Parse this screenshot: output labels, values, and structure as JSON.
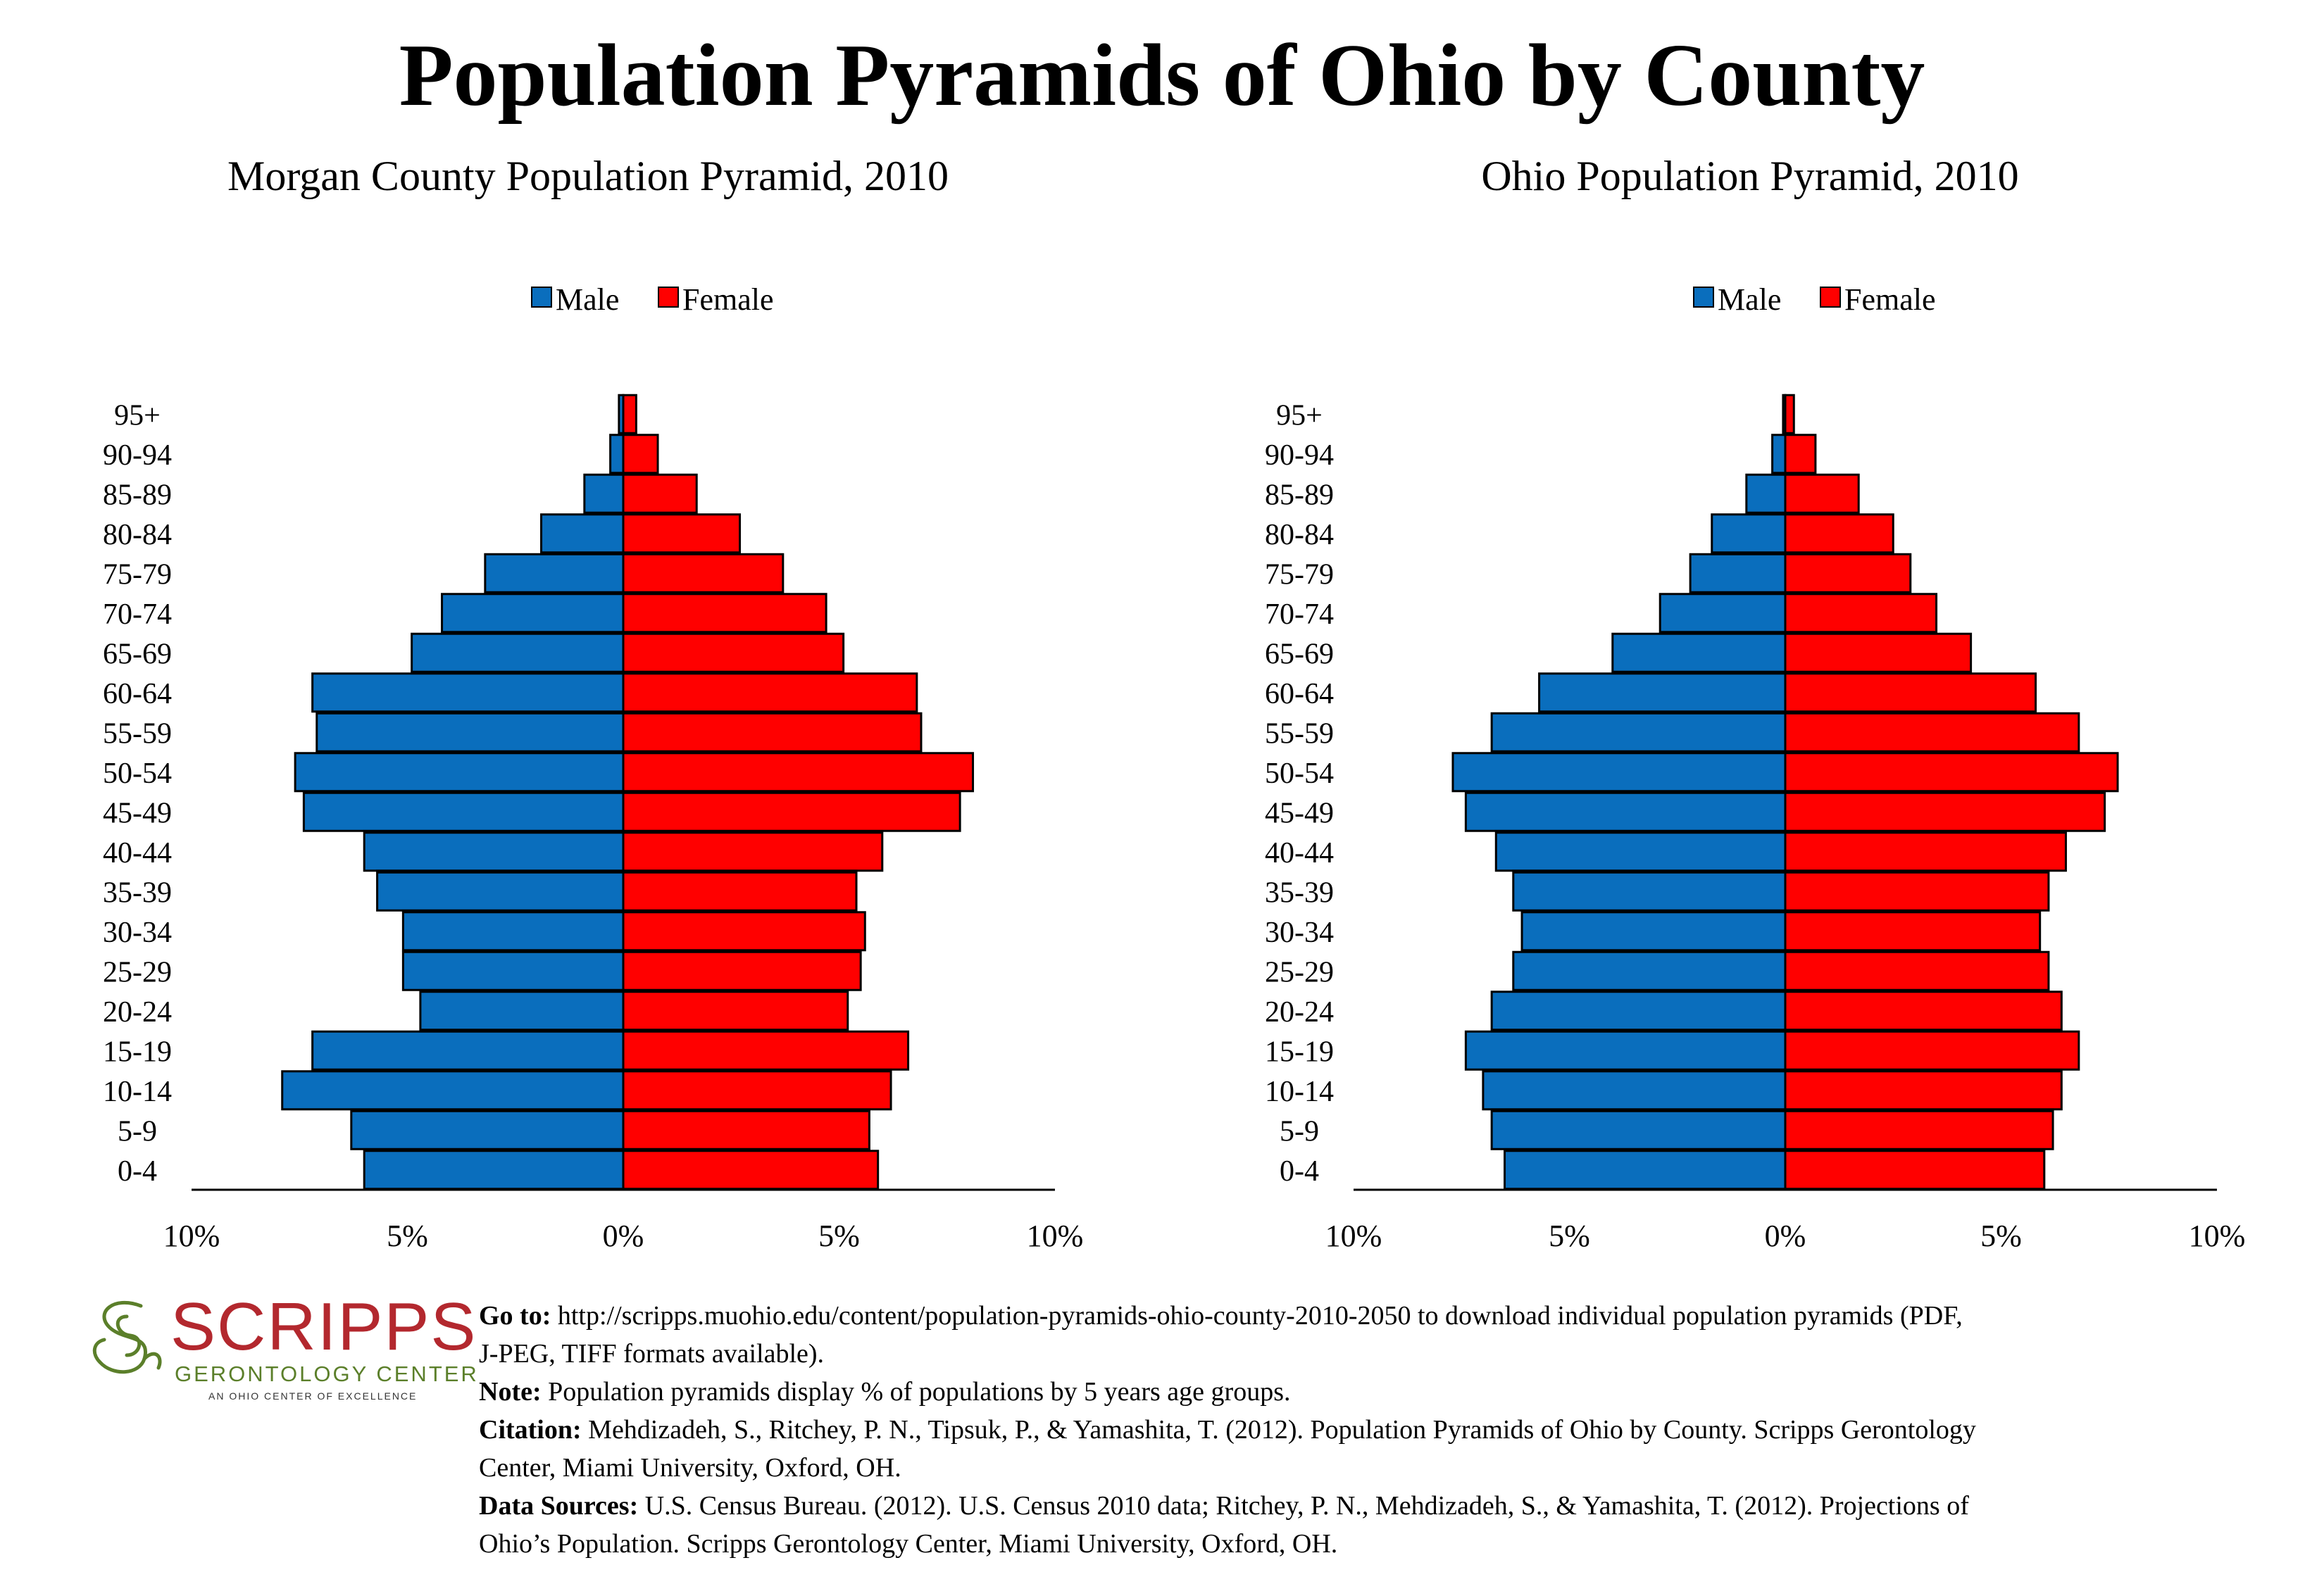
{
  "title": "Population Pyramids of Ohio by County",
  "colors": {
    "male": "#0a6ebd",
    "female": "#ff0000",
    "logo_red": "#b3282e",
    "logo_green": "#5b7f2a"
  },
  "chart_data": [
    {
      "type": "bar",
      "orientation": "horizontal-pyramid",
      "title": "Morgan County Population Pyramid, 2010",
      "legend": {
        "position": "top-center",
        "entries": [
          "Male",
          "Female"
        ]
      },
      "categories": [
        "0-4",
        "5-9",
        "10-14",
        "15-19",
        "20-24",
        "25-29",
        "30-34",
        "35-39",
        "40-44",
        "45-49",
        "50-54",
        "55-59",
        "60-64",
        "65-69",
        "70-74",
        "75-79",
        "80-84",
        "85-89",
        "90-94",
        "95+"
      ],
      "series": [
        {
          "name": "Male",
          "values": [
            6.0,
            6.3,
            7.9,
            7.2,
            4.7,
            5.1,
            5.1,
            5.7,
            6.0,
            7.4,
            7.6,
            7.1,
            7.2,
            4.9,
            4.2,
            3.2,
            1.9,
            0.9,
            0.3,
            0.1
          ]
        },
        {
          "name": "Female",
          "values": [
            5.9,
            5.7,
            6.2,
            6.6,
            5.2,
            5.5,
            5.6,
            5.4,
            6.0,
            7.8,
            8.1,
            6.9,
            6.8,
            5.1,
            4.7,
            3.7,
            2.7,
            1.7,
            0.8,
            0.3
          ]
        }
      ],
      "xlim": [
        -10,
        10
      ],
      "xticks": [
        "10%",
        "5%",
        "0%",
        "5%",
        "10%"
      ],
      "grid": false
    },
    {
      "type": "bar",
      "orientation": "horizontal-pyramid",
      "title": "Ohio Population Pyramid, 2010",
      "legend": {
        "position": "top-center",
        "entries": [
          "Male",
          "Female"
        ]
      },
      "categories": [
        "0-4",
        "5-9",
        "10-14",
        "15-19",
        "20-24",
        "25-29",
        "30-34",
        "35-39",
        "40-44",
        "45-49",
        "50-54",
        "55-59",
        "60-64",
        "65-69",
        "70-74",
        "75-79",
        "80-84",
        "85-89",
        "90-94",
        "95+"
      ],
      "series": [
        {
          "name": "Male",
          "values": [
            6.5,
            6.8,
            7.0,
            7.4,
            6.8,
            6.3,
            6.1,
            6.3,
            6.7,
            7.4,
            7.7,
            6.8,
            5.7,
            4.0,
            2.9,
            2.2,
            1.7,
            0.9,
            0.3,
            0.05
          ]
        },
        {
          "name": "Female",
          "values": [
            6.0,
            6.2,
            6.4,
            6.8,
            6.4,
            6.1,
            5.9,
            6.1,
            6.5,
            7.4,
            7.7,
            6.8,
            5.8,
            4.3,
            3.5,
            2.9,
            2.5,
            1.7,
            0.7,
            0.2
          ]
        }
      ],
      "xlim": [
        -10,
        10
      ],
      "xticks": [
        "10%",
        "5%",
        "0%",
        "5%",
        "10%"
      ],
      "grid": false
    }
  ],
  "logo": {
    "name": "SCRIPPS",
    "sub": "GERONTOLOGY CENTER",
    "tagline": "AN OHIO CENTER OF EXCELLENCE"
  },
  "notes": {
    "goto_label": "Go to:",
    "goto_text_1": "http://scripps.muohio.edu/content/population-pyramids-ohio-county-2010-2050 to download individual population pyramids (PDF,",
    "goto_text_2": "J-PEG, TIFF formats available).",
    "note_label": "Note:",
    "note_text": "Population pyramids display % of populations by 5 years age groups.",
    "citation_label": "Citation:",
    "citation_text_1": "Mehdizadeh, S., Ritchey, P. N., Tipsuk, P., & Yamashita, T. (2012). Population Pyramids of Ohio by County. Scripps Gerontology",
    "citation_text_2": "Center, Miami University, Oxford, OH.",
    "sources_label": "Data Sources:",
    "sources_text_1": "U.S. Census Bureau. (2012). U.S. Census 2010 data; Ritchey, P. N., Mehdizadeh, S., & Yamashita, T. (2012). Projections of",
    "sources_text_2": "Ohio’s Population. Scripps Gerontology Center, Miami University, Oxford, OH."
  }
}
